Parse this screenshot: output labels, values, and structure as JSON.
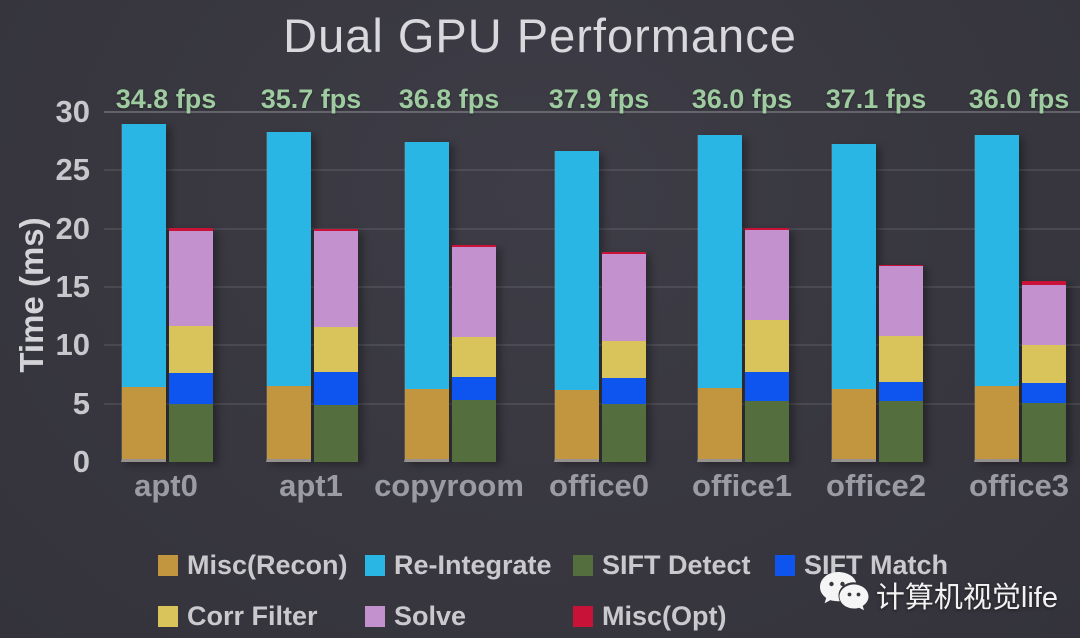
{
  "title": "Dual GPU Performance",
  "y_axis": {
    "label": "Time (ms)",
    "ticks": [
      0,
      5,
      10,
      15,
      20,
      25,
      30
    ]
  },
  "fps_labels": [
    "34.8 fps",
    "35.7 fps",
    "36.8 fps",
    "37.9 fps",
    "36.0 fps",
    "37.1 fps",
    "36.0 fps"
  ],
  "watermark": {
    "icon": "wechat-icon",
    "text": "计算机视觉life"
  },
  "colors": {
    "background": "#38373f",
    "title_text": "#d8d8dd",
    "fps_text": "#9ecb9f",
    "tick_text": "#c7c7cc",
    "category_text": "#9b9ba4",
    "legend_text": "#c9c9ce",
    "misc_recon": "#c2963e",
    "re_integrate": "#29b6e4",
    "sift_detect": "#556e3e",
    "sift_match": "#0e55f0",
    "corr_filter": "#d8c45a",
    "solve": "#c491cf",
    "misc_opt": "#c81237"
  },
  "chart_data": {
    "type": "bar",
    "subtype": "grouped-stacked",
    "title": "Dual GPU Performance",
    "xlabel": "",
    "ylabel": "Time (ms)",
    "ylim": [
      0,
      30
    ],
    "grid": true,
    "legend_position": "bottom",
    "categories": [
      "apt0",
      "apt1",
      "copyroom",
      "office0",
      "office1",
      "office2",
      "office3"
    ],
    "fps": [
      34.8,
      35.7,
      36.8,
      37.9,
      36.0,
      37.1,
      36.0
    ],
    "series": [
      {
        "name": "Misc(Recon)",
        "stack": "recon",
        "color": "#c2963e",
        "values": [
          6.2,
          6.3,
          6.0,
          5.9,
          6.1,
          6.0,
          6.3
        ]
      },
      {
        "name": "Re-Integrate",
        "stack": "recon",
        "color": "#29b6e4",
        "values": [
          22.5,
          21.7,
          21.2,
          20.5,
          21.7,
          21.0,
          21.5
        ]
      },
      {
        "name": "SIFT Detect",
        "stack": "opt",
        "color": "#556e3e",
        "values": [
          5.0,
          4.9,
          5.3,
          5.0,
          5.2,
          5.2,
          5.1
        ]
      },
      {
        "name": "SIFT Match",
        "stack": "opt",
        "color": "#0e55f0",
        "values": [
          2.6,
          2.8,
          2.0,
          2.2,
          2.5,
          1.7,
          1.7
        ]
      },
      {
        "name": "Corr Filter",
        "stack": "opt",
        "color": "#d8c45a",
        "values": [
          4.1,
          3.9,
          3.4,
          3.2,
          4.5,
          3.9,
          3.2
        ]
      },
      {
        "name": "Solve",
        "stack": "opt",
        "color": "#c491cf",
        "values": [
          8.1,
          8.2,
          7.7,
          7.4,
          7.7,
          6.0,
          5.2
        ]
      },
      {
        "name": "Misc(Opt)",
        "stack": "opt",
        "color": "#c81237",
        "values": [
          0.3,
          0.2,
          0.2,
          0.2,
          0.2,
          0.1,
          0.3
        ]
      }
    ]
  }
}
